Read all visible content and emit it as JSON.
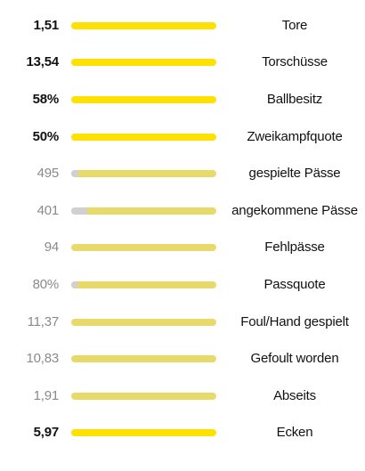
{
  "stats": [
    {
      "value": "1,51",
      "label": "Tore",
      "emphasis": "strong",
      "other_share": 0
    },
    {
      "value": "13,54",
      "label": "Torschüsse",
      "emphasis": "strong",
      "other_share": 0
    },
    {
      "value": "58%",
      "label": "Ballbesitz",
      "emphasis": "strong",
      "other_share": 0
    },
    {
      "value": "50%",
      "label": "Zweikampfquote",
      "emphasis": "strong",
      "other_share": 0
    },
    {
      "value": "495",
      "label": "gespielte Pässe",
      "emphasis": "weak",
      "other_share": 0.05
    },
    {
      "value": "401",
      "label": "angekommene Pässe",
      "emphasis": "weak",
      "other_share": 0.11
    },
    {
      "value": "94",
      "label": "Fehlpässe",
      "emphasis": "weak",
      "other_share": 0
    },
    {
      "value": "80%",
      "label": "Passquote",
      "emphasis": "weak",
      "other_share": 0.04
    },
    {
      "value": "11,37",
      "label": "Foul/Hand gespielt",
      "emphasis": "weak",
      "other_share": 0
    },
    {
      "value": "10,83",
      "label": "Gefoult worden",
      "emphasis": "weak",
      "other_share": 0
    },
    {
      "value": "1,91",
      "label": "Abseits",
      "emphasis": "weak",
      "other_share": 0
    },
    {
      "value": "5,97",
      "label": "Ecken",
      "emphasis": "strong",
      "other_share": 0
    }
  ],
  "colors": {
    "bar_strong": "#fde100",
    "bar_weak": "#e8da6a",
    "bar_other": "#d0d0d0",
    "value_strong": "#111111",
    "value_weak": "#8a8a8a"
  }
}
